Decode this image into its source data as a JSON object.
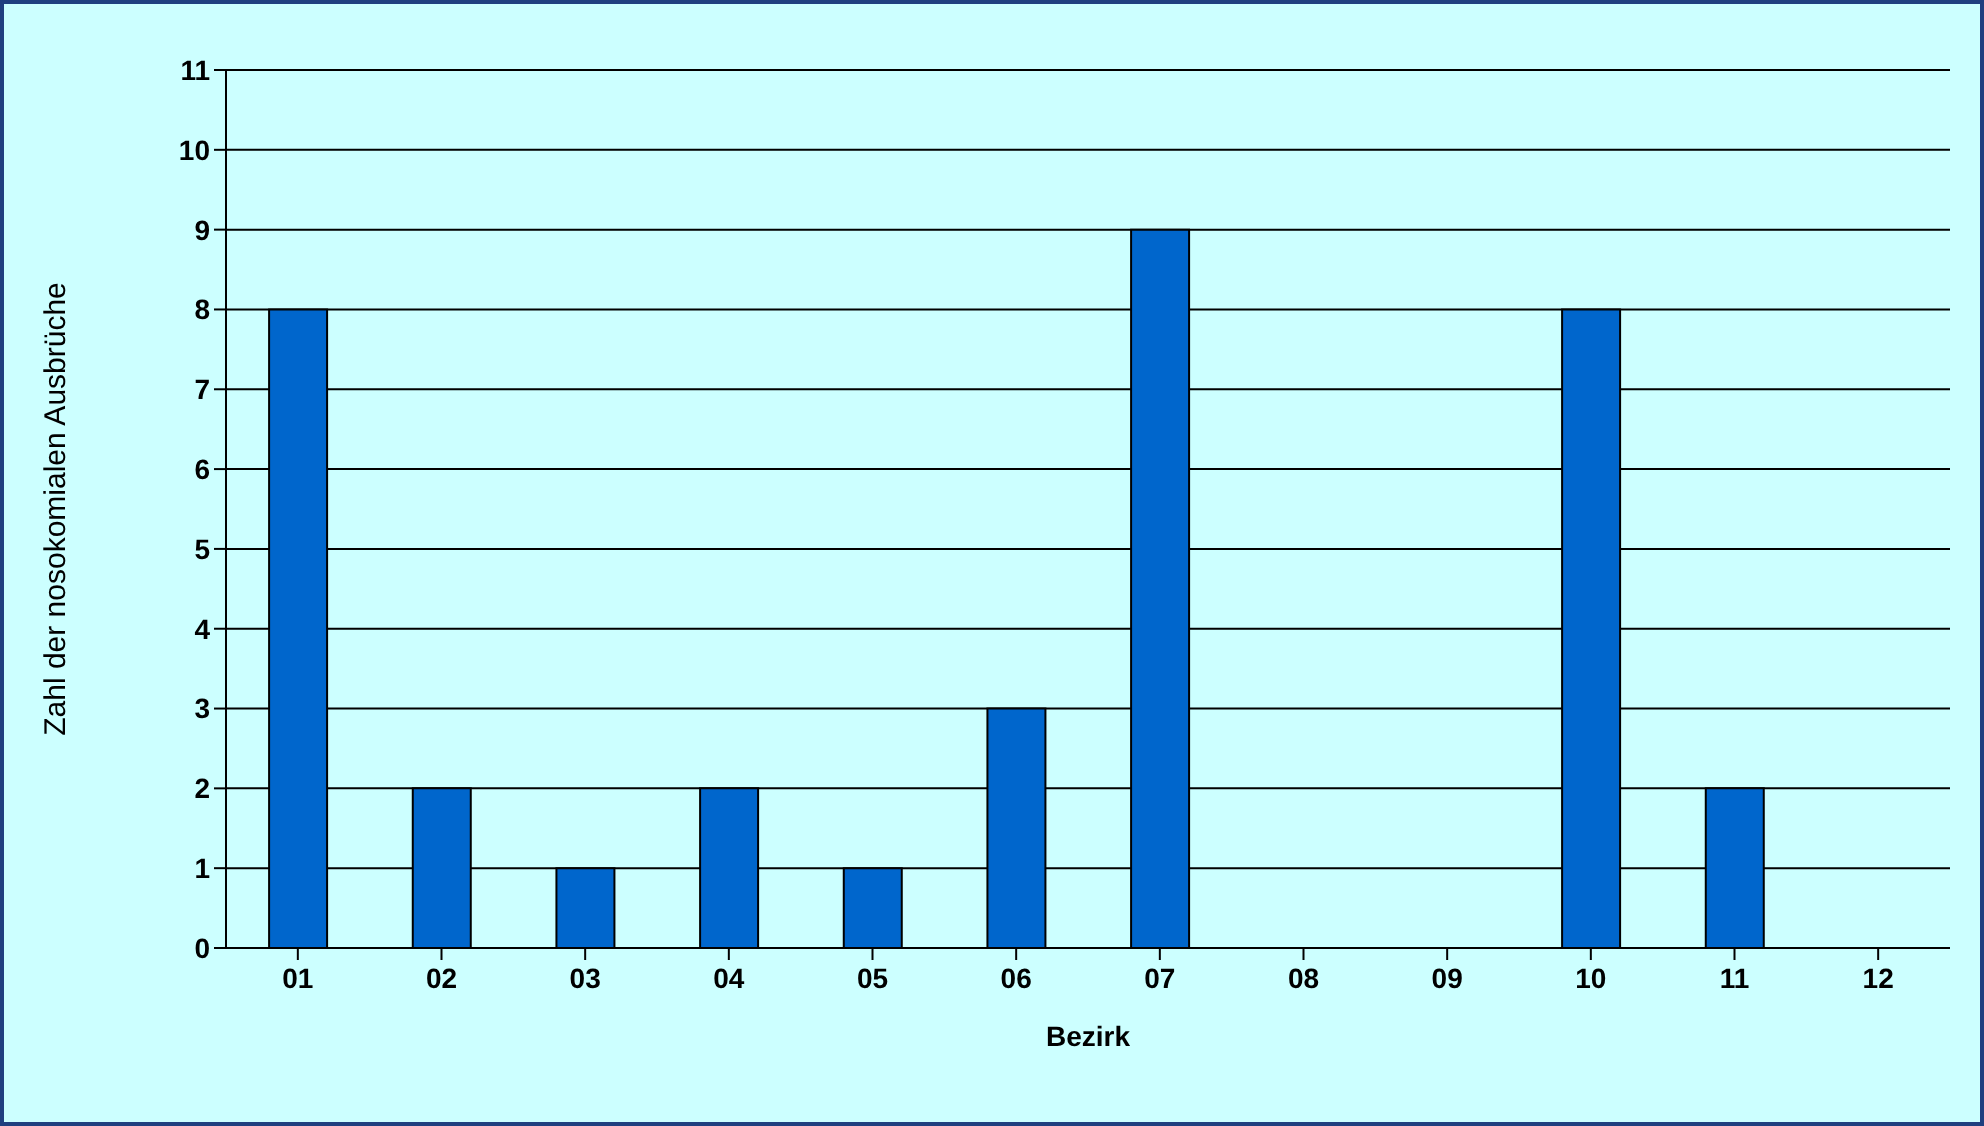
{
  "chart_data": {
    "type": "bar",
    "xlabel": "Bezirk",
    "ylabel": "Zahl der nosokomialen Ausbrüche",
    "categories": [
      "01",
      "02",
      "03",
      "04",
      "05",
      "06",
      "07",
      "08",
      "09",
      "10",
      "11",
      "12"
    ],
    "values": [
      8,
      2,
      1,
      2,
      1,
      3,
      9,
      0,
      0,
      8,
      2,
      0
    ],
    "color": "#0066cc",
    "ylim": [
      0,
      11
    ],
    "yticks": [
      0,
      1,
      2,
      3,
      4,
      5,
      6,
      7,
      8,
      9,
      10,
      11
    ],
    "grid": "y",
    "legend": false
  }
}
